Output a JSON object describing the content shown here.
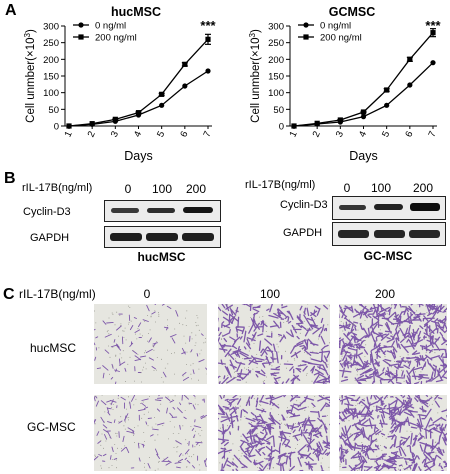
{
  "panels": {
    "a": "A",
    "b": "B",
    "c": "C"
  },
  "chart_data": [
    {
      "type": "line",
      "title": "hucMSC",
      "xlabel": "Days",
      "ylabel_prefix": "Cell unmber(×10",
      "ylabel_exp": "3",
      "ylabel_suffix": ")",
      "categories": [
        "1",
        "2",
        "3",
        "4",
        "5",
        "6",
        "7"
      ],
      "yticks": [
        "0",
        "50",
        "100",
        "150",
        "200",
        "250",
        "300"
      ],
      "ylim": [
        0,
        300
      ],
      "legend_position": "top-left",
      "significance": "***",
      "series": [
        {
          "name": "0 ng/ml",
          "marker": "circle",
          "values": [
            0,
            5,
            14,
            33,
            62,
            120,
            165
          ]
        },
        {
          "name": "200 ng/ml",
          "marker": "square",
          "values": [
            0,
            7,
            20,
            40,
            95,
            185,
            260
          ]
        }
      ],
      "errors": [
        0,
        0,
        1,
        2,
        3,
        5,
        15
      ]
    },
    {
      "type": "line",
      "title": "GCMSC",
      "xlabel": "Days",
      "ylabel_prefix": "Cell unmber(×10",
      "ylabel_exp": "3",
      "ylabel_suffix": ")",
      "categories": [
        "1",
        "2",
        "3",
        "4",
        "5",
        "6",
        "7"
      ],
      "yticks": [
        "0",
        "50",
        "100",
        "150",
        "200",
        "250",
        "300"
      ],
      "ylim": [
        0,
        300
      ],
      "legend_position": "top-left",
      "significance": "***",
      "series": [
        {
          "name": "0 ng/ml",
          "marker": "circle",
          "values": [
            0,
            6,
            12,
            28,
            62,
            123,
            190
          ]
        },
        {
          "name": "200 ng/ml",
          "marker": "square",
          "values": [
            0,
            8,
            18,
            42,
            108,
            200,
            280
          ]
        }
      ],
      "errors": [
        0,
        0,
        1,
        2,
        4,
        6,
        12
      ]
    }
  ],
  "western": {
    "dose_label": "rIL-17B(ng/ml)",
    "doses": [
      "0",
      "100",
      "200"
    ],
    "left": {
      "protein": "Cyclin-D3",
      "control": "GAPDH",
      "caption": "hucMSC"
    },
    "right": {
      "protein": "Cyclin-D3",
      "control": "GAPDH",
      "caption": "GC-MSC"
    }
  },
  "migration": {
    "dose_label": "rIL-17B(ng/ml)",
    "doses": [
      "0",
      "100",
      "200"
    ],
    "rows": [
      "hucMSC",
      "GC-MSC"
    ],
    "stain_color": "#6b3fa0"
  }
}
